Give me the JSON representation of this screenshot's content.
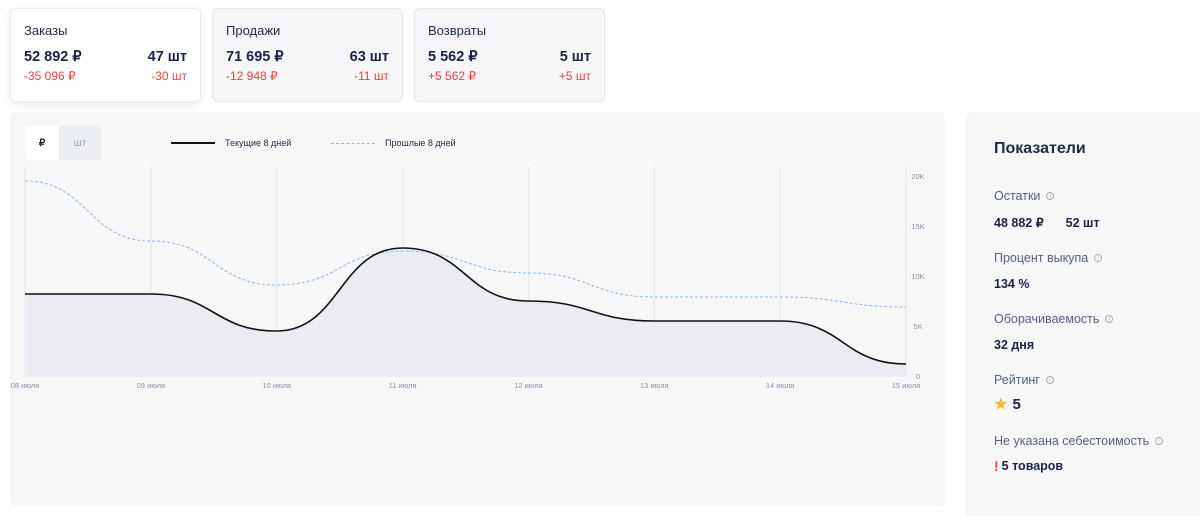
{
  "cards": [
    {
      "title": "Заказы",
      "amount": "52 892 ₽",
      "qty": "47 шт",
      "amount_delta": "-35 096 ₽",
      "qty_delta": "-30 шт"
    },
    {
      "title": "Продажи",
      "amount": "71 695 ₽",
      "qty": "63 шт",
      "amount_delta": "-12 948 ₽",
      "qty_delta": "-11 шт"
    },
    {
      "title": "Возвраты",
      "amount": "5 562 ₽",
      "qty": "5 шт",
      "amount_delta": "+5 562 ₽",
      "qty_delta": "+5 шт"
    }
  ],
  "toggle": {
    "rub": "₽",
    "pcs": "шт"
  },
  "legend": {
    "current": "Текущие 8 дней",
    "previous": "Прошлые 8 дней"
  },
  "chart_data": {
    "type": "line",
    "x": [
      "08 июля",
      "09 июля",
      "10 июля",
      "11 июля",
      "12 июля",
      "13 июля",
      "14 июля",
      "15 июля"
    ],
    "y_ticks": [
      "0",
      "5K",
      "10K",
      "15K",
      "20K"
    ],
    "ylim": [
      0,
      20000
    ],
    "series": [
      {
        "name": "Текущие 8 дней",
        "values": [
          8200,
          8200,
          4500,
          12800,
          7500,
          5500,
          5500,
          1200
        ],
        "color": "#111111",
        "style": "solid"
      },
      {
        "name": "Прошлые 8 дней",
        "values": [
          19500,
          13500,
          9100,
          12500,
          10300,
          7900,
          7900,
          6900
        ],
        "color": "#8cb8f0",
        "style": "dashed"
      }
    ]
  },
  "side": {
    "heading": "Показатели",
    "stock_label": "Остатки",
    "stock_value": "48 882 ₽",
    "stock_qty": "52 шт",
    "buyout_label": "Процент выкупа",
    "buyout_value": "134 %",
    "turnover_label": "Оборачиваемость",
    "turnover_value": "32 дня",
    "rating_label": "Рейтинг",
    "rating_value": "5",
    "cost_label": "Не указана себестоимость",
    "cost_value": "5 товаров"
  }
}
